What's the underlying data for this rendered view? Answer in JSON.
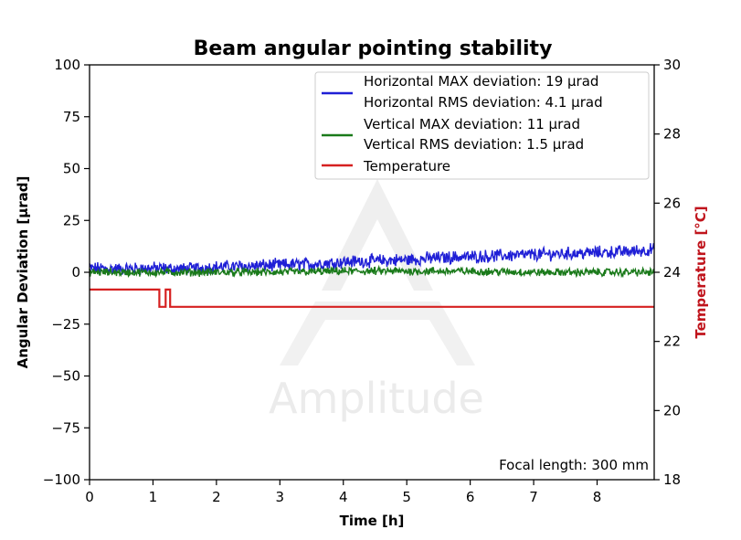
{
  "chart_data": {
    "type": "line",
    "title": "Beam angular pointing stability",
    "xlabel": "Time [h]",
    "ylabel": "Angular Deviation [µrad]",
    "y2label": "Temperature [°C]",
    "xlim": [
      0,
      8.9
    ],
    "ylim": [
      -100,
      100
    ],
    "y2lim": [
      18,
      30
    ],
    "xticks": [
      0,
      1,
      2,
      3,
      4,
      5,
      6,
      7,
      8
    ],
    "yticks": [
      -100,
      -75,
      -50,
      -25,
      0,
      25,
      50,
      75,
      100
    ],
    "ytick_labels": [
      "−100",
      "−75",
      "−50",
      "−25",
      "0",
      "25",
      "50",
      "75",
      "100"
    ],
    "y2ticks": [
      18,
      20,
      22,
      24,
      26,
      28,
      30
    ],
    "grid": false,
    "legend_position": "top-right",
    "series": [
      {
        "legend": [
          "Horizontal MAX deviation: 19 µrad",
          "Horizontal RMS deviation: 4.1 µrad"
        ],
        "color": "#1f1fd6",
        "axis": "left",
        "x": [
          0,
          0.5,
          1,
          1.5,
          2,
          2.5,
          3,
          3.5,
          4,
          4.5,
          5,
          5.5,
          6,
          6.5,
          7,
          7.5,
          8,
          8.5,
          8.9
        ],
        "y": [
          2,
          1.5,
          2,
          1.5,
          2.5,
          3,
          3.5,
          4,
          5,
          5.5,
          6,
          7,
          7.5,
          8,
          8.5,
          9,
          9.5,
          10,
          11
        ],
        "noise": 2.6
      },
      {
        "legend": [
          "Vertical MAX deviation: 11 µrad",
          "Vertical RMS deviation: 1.5 µrad"
        ],
        "color": "#1a7a1a",
        "axis": "left",
        "x": [
          0,
          1,
          2,
          3,
          4,
          5,
          6,
          7,
          8,
          8.9
        ],
        "y": [
          0,
          0,
          0,
          0,
          0.5,
          0.5,
          0.5,
          0,
          0,
          0
        ],
        "noise": 1.6
      },
      {
        "legend": [
          "Temperature"
        ],
        "color": "#d62020",
        "axis": "right",
        "x": [
          0,
          1.1,
          1.1,
          1.2,
          1.2,
          1.27,
          1.27,
          1.35,
          1.35,
          8.9
        ],
        "y": [
          23.5,
          23.5,
          23.0,
          23.0,
          23.5,
          23.5,
          23.0,
          23.0,
          23.0,
          23.0
        ]
      }
    ],
    "annotation": "Focal length: 300 mm",
    "watermark": "Amplitude"
  }
}
